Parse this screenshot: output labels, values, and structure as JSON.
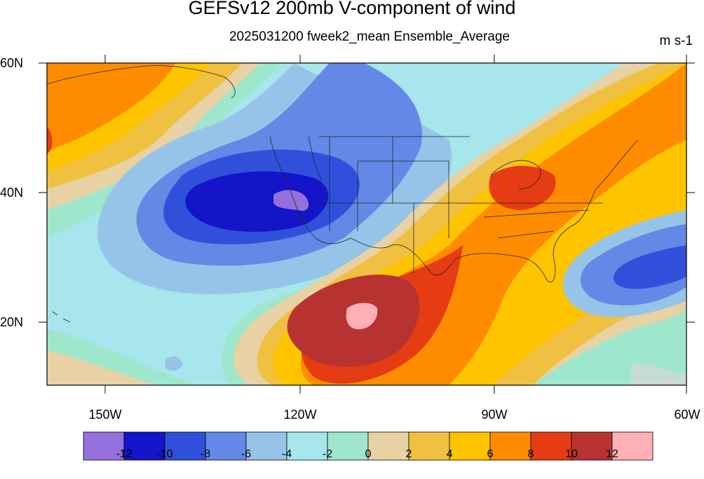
{
  "title": "GEFSv12 200mb V-component of wind",
  "subtitle": "2025031200 fweek2_mean Ensemble_Average",
  "units": "m s-1",
  "lat_labels": [
    "60N",
    "40N",
    "20N"
  ],
  "lon_labels": [
    "150W",
    "120W",
    "90W",
    "60W"
  ],
  "map_extent": {
    "lon": [
      -159,
      -61
    ],
    "lat": [
      10,
      60
    ]
  },
  "colorbar": {
    "labels": [
      "-12",
      "-10",
      "-8",
      "-6",
      "-4",
      "-2",
      "0",
      "2",
      "4",
      "6",
      "8",
      "10",
      "12"
    ],
    "colors": [
      "#9370DB",
      "#1414C8",
      "#3050DC",
      "#6488E6",
      "#96C4E8",
      "#A6E6EC",
      "#9EE6CC",
      "#E8D2A4",
      "#F0C040",
      "#FFC400",
      "#FF8C00",
      "#E63C14",
      "#B83232",
      "#FFB0B4"
    ]
  },
  "features": [
    {
      "name": "trough-west-us",
      "lon": -126,
      "lat": 39,
      "min_value": -12
    },
    {
      "name": "ridge-mexico",
      "lon": -109,
      "lat": 21,
      "max_value": 12
    },
    {
      "name": "max-great-lakes",
      "lon": -85,
      "lat": 40,
      "max_value": 10
    },
    {
      "name": "trough-atlantic",
      "lon": -64,
      "lat": 27,
      "min_value": -8
    },
    {
      "name": "max-gulf-alaska",
      "lon": -158,
      "lat": 48,
      "max_value": 8
    }
  ]
}
